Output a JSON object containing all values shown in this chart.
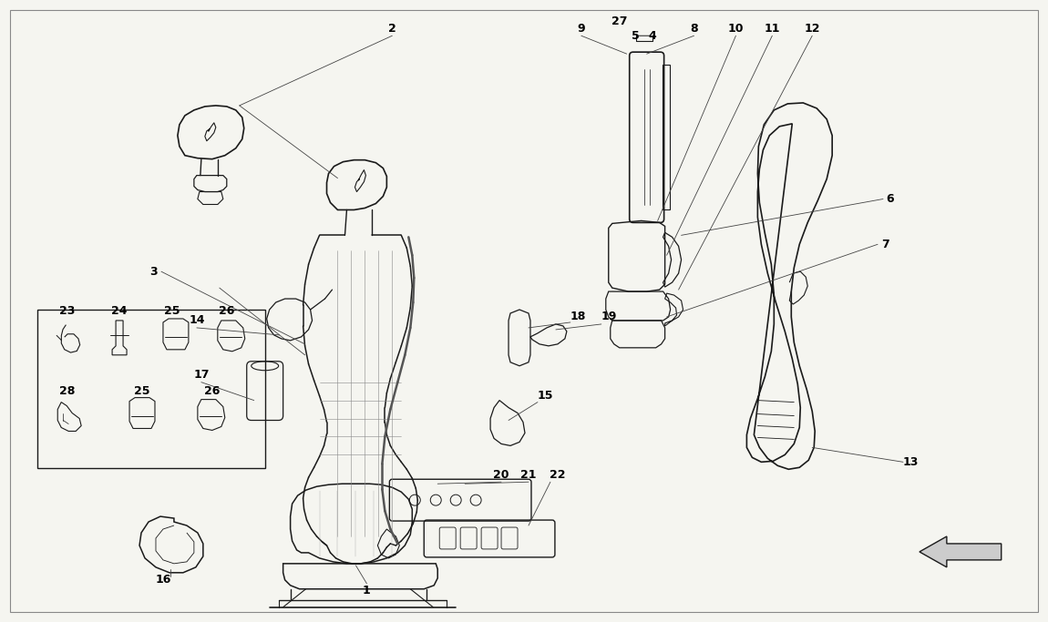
{
  "background_color": "#f5f5f0",
  "line_color": "#1a1a1a",
  "label_color": "#000000",
  "fig_width": 11.5,
  "fig_height": 6.83,
  "dpi": 100
}
